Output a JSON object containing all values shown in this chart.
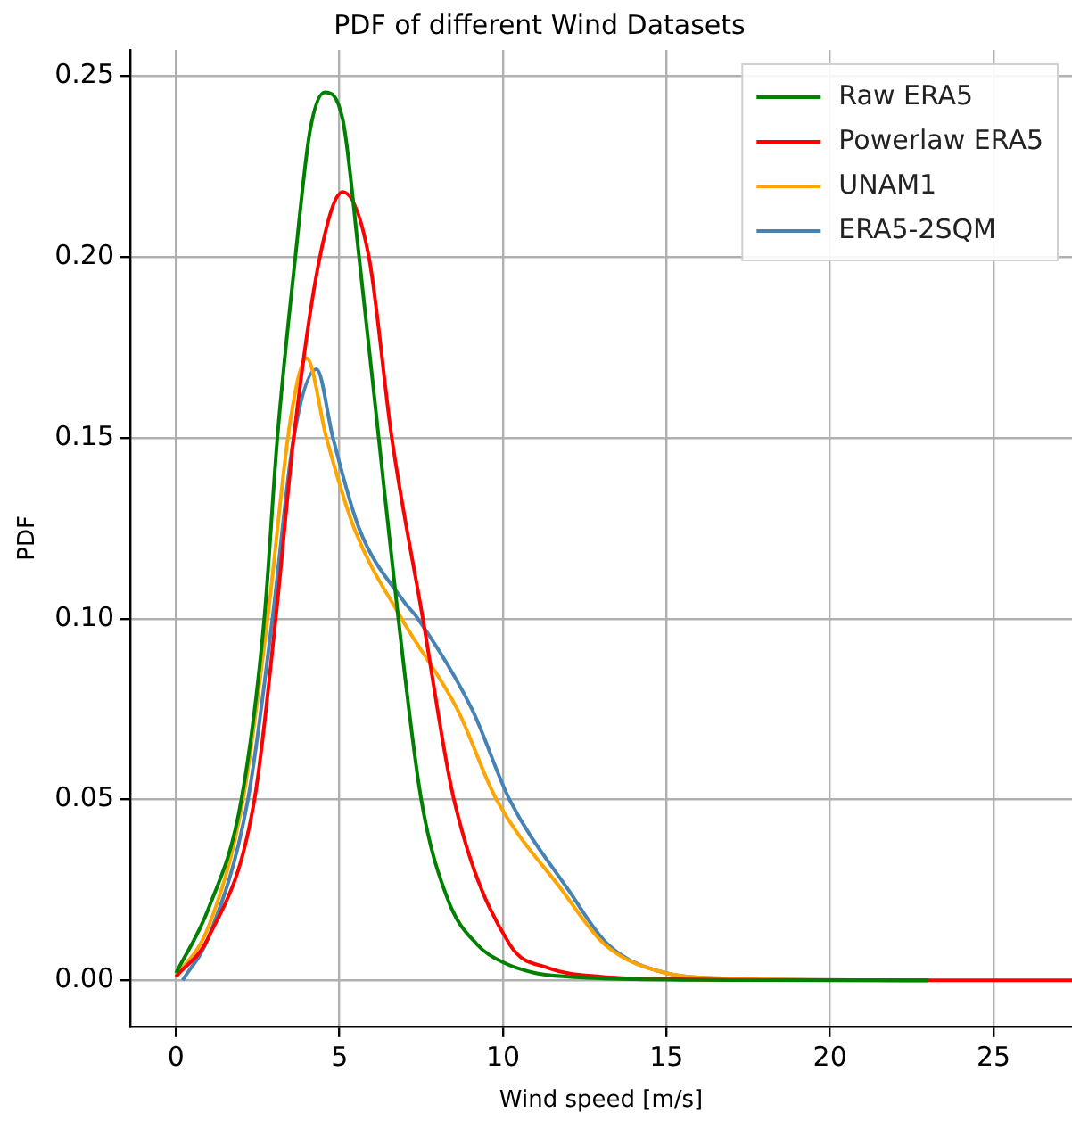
{
  "chart_data": {
    "type": "line",
    "title": "PDF of different Wind Datasets",
    "xlabel": "Wind speed [m/s]",
    "ylabel": "PDF",
    "xlim": [
      -1.4,
      27.4
    ],
    "ylim": [
      -0.0127,
      0.2573
    ],
    "xticks": [
      0,
      5,
      10,
      15,
      20,
      25
    ],
    "yticks": [
      {
        "value": 0,
        "label": "0.00"
      },
      {
        "value": 0.05,
        "label": "0.05"
      },
      {
        "value": 0.1,
        "label": "0.10"
      },
      {
        "value": 0.15,
        "label": "0.15"
      },
      {
        "value": 0.2,
        "label": "0.20"
      },
      {
        "value": 0.25,
        "label": "0.25"
      }
    ],
    "grid": true,
    "legend": "top right",
    "marker": "none",
    "line_style": "solid",
    "series": [
      {
        "name": "Raw ERA5",
        "color": "#008000",
        "x": [
          0,
          1,
          2,
          2.7,
          3.1,
          3.65,
          4.1,
          4.55,
          5.1,
          5.6,
          6.2,
          6.8,
          7.5,
          8.33,
          9.2,
          10,
          11,
          12,
          14,
          17,
          23
        ],
        "values": [
          0.002,
          0.02,
          0.05,
          0.1,
          0.15,
          0.2,
          0.235,
          0.2456,
          0.238,
          0.2,
          0.15,
          0.1,
          0.05,
          0.022,
          0.01,
          0.005,
          0.002,
          0.001,
          0.0003,
          0.0001,
          0
        ]
      },
      {
        "name": "Powerlaw ERA5",
        "color": "#ff0000",
        "x": [
          0,
          1,
          2.4,
          3.05,
          3.6,
          4.4,
          5.1,
          5.9,
          6.6,
          7.55,
          8.5,
          10.2,
          11.4,
          13,
          15,
          18,
          22,
          27.4
        ],
        "values": [
          0.001,
          0.012,
          0.05,
          0.1,
          0.15,
          0.2,
          0.218,
          0.2,
          0.15,
          0.1,
          0.05,
          0.01,
          0.0034,
          0.001,
          0.0004,
          0.0001,
          0,
          0
        ]
      },
      {
        "name": "UNAM1",
        "color": "#ffa500",
        "x": [
          0,
          1,
          2.05,
          2.8,
          3.5,
          4,
          4.6,
          5.45,
          6.9,
          8.6,
          9.8,
          11.8,
          13.1,
          15,
          17,
          23
        ],
        "values": [
          0.001,
          0.015,
          0.05,
          0.1,
          0.155,
          0.172,
          0.15,
          0.125,
          0.1,
          0.075,
          0.05,
          0.025,
          0.01,
          0.002,
          0.0005,
          0
        ]
      },
      {
        "name": "ERA5-2SQM",
        "color": "#4682b4",
        "x": [
          0.2,
          1,
          2.2,
          2.95,
          3.6,
          4.3,
          4.8,
          5.6,
          6.95,
          7.4,
          9.05,
          10.2,
          12,
          13.2,
          15,
          17,
          23
        ],
        "values": [
          0,
          0.012,
          0.05,
          0.1,
          0.15,
          0.169,
          0.15,
          0.125,
          0.105,
          0.1,
          0.075,
          0.05,
          0.025,
          0.01,
          0.002,
          0.0005,
          0
        ]
      }
    ]
  }
}
